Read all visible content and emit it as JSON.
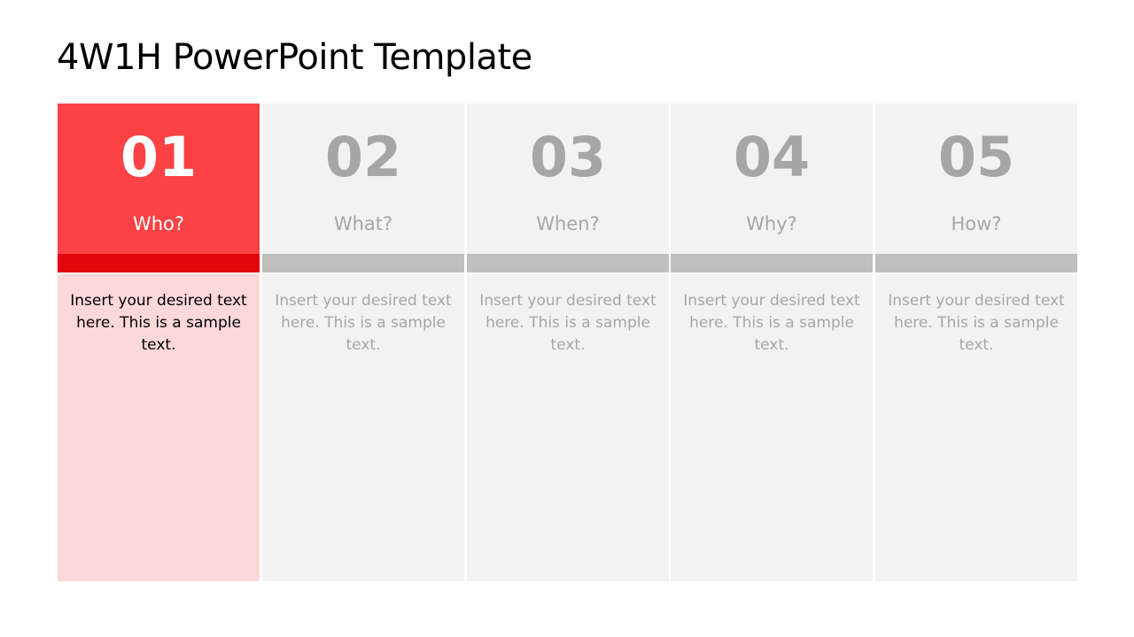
{
  "title": "4W1H PowerPoint Template",
  "colors": {
    "accent": "#fd4246",
    "accent_dark": "#e3060c",
    "accent_light": "#fdd8d8",
    "neutral": "#f2f2f2",
    "neutral_bar": "#bfbfbf",
    "neutral_text": "#a6a6a6"
  },
  "columns": [
    {
      "number": "01",
      "question": "Who?",
      "text": "Insert your desired text here. This is a sample text.",
      "active": true
    },
    {
      "number": "02",
      "question": "What?",
      "text": "Insert your desired text here. This is a sample text.",
      "active": false
    },
    {
      "number": "03",
      "question": "When?",
      "text": "Insert your desired text here. This is a sample text.",
      "active": false
    },
    {
      "number": "04",
      "question": "Why?",
      "text": "Insert your desired text here. This is a sample text.",
      "active": false
    },
    {
      "number": "05",
      "question": "How?",
      "text": "Insert your desired text here. This is a sample text.",
      "active": false
    }
  ]
}
